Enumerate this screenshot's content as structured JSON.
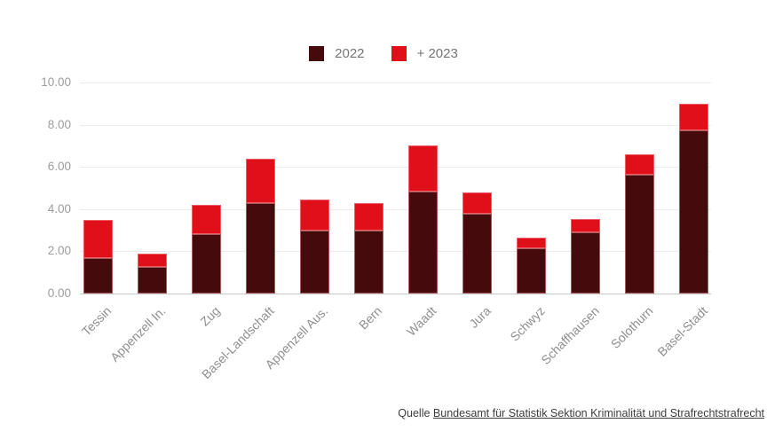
{
  "legend": {
    "items": [
      "2022",
      "+ 2023"
    ]
  },
  "y_axis": {
    "tick_labels": [
      "10.00",
      "8.00",
      "6.00",
      "4.00",
      "2.00",
      "0.00"
    ]
  },
  "source": {
    "prefix": "Quelle",
    "link_text": "Bundesamt für Statistik Sektion Kriminalität und Strafrechtstrafrecht"
  },
  "colors": {
    "series_2022": "#450A0C",
    "series_2023": "#E0101A",
    "grid": "#EBEBEB",
    "baseline": "#C9C9C9",
    "axis_text": "#9D9D9D",
    "category_text": "#8F8F8F",
    "legend_text": "#757575",
    "source_text": "#3D3D3D"
  },
  "chart_data": {
    "type": "bar",
    "stacked": true,
    "title": "",
    "xlabel": "",
    "ylabel": "",
    "ylim": [
      0,
      10
    ],
    "ytick_step": 2,
    "grid": true,
    "legend_position": "top-center",
    "categories": [
      "Tessin",
      "Appenzell In.",
      "Zug",
      "Basel-Landschaft",
      "Appenzell Aus.",
      "Bern",
      "Waadt",
      "Jura",
      "Schwyz",
      "Schaffhausen",
      "Solothurn",
      "Basel-Stadt"
    ],
    "series": [
      {
        "name": "2022",
        "color": "#450A0C",
        "values": [
          1.7,
          1.25,
          2.8,
          4.3,
          3.0,
          3.0,
          4.85,
          3.8,
          2.15,
          2.9,
          5.65,
          7.75
        ]
      },
      {
        "name": "+ 2023",
        "color": "#E0101A",
        "values": [
          1.8,
          0.65,
          1.4,
          2.1,
          1.45,
          1.3,
          2.15,
          1.0,
          0.5,
          0.65,
          0.95,
          1.25
        ]
      }
    ],
    "stack_totals": [
      3.5,
      1.9,
      4.2,
      6.4,
      4.45,
      4.3,
      7.0,
      4.8,
      2.65,
      3.55,
      6.6,
      9.0
    ]
  }
}
